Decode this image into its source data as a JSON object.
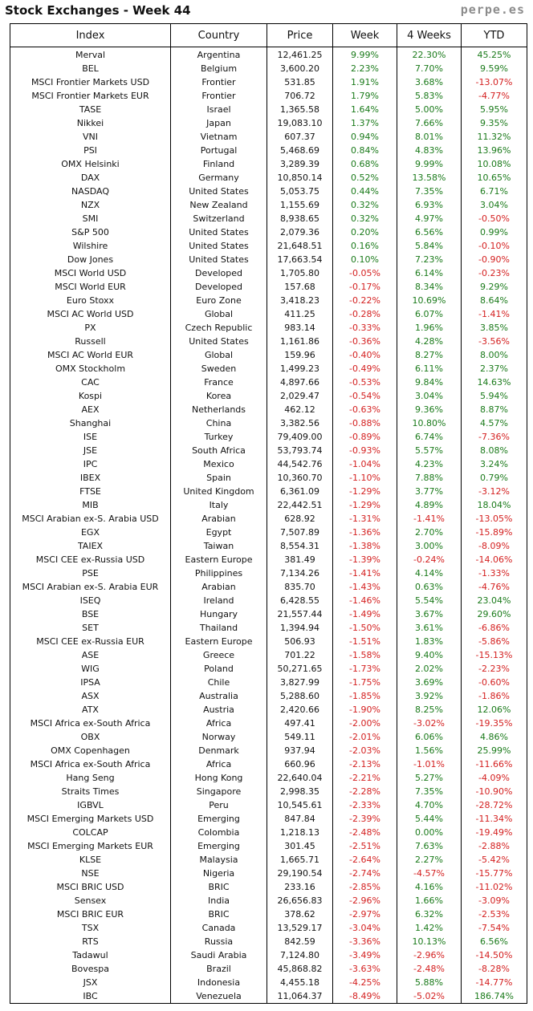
{
  "header": {
    "title": "Stock Exchanges - Week 44",
    "site": "perpe.es"
  },
  "colors": {
    "positive": "#1a7a1a",
    "negative": "#d42020"
  },
  "table": {
    "columns": [
      "Index",
      "Country",
      "Price",
      "Week",
      "4 Weeks",
      "YTD"
    ],
    "rows": [
      [
        "Merval",
        "Argentina",
        "12,461.25",
        "9.99%",
        "22.30%",
        "45.25%"
      ],
      [
        "BEL",
        "Belgium",
        "3,600.20",
        "2.23%",
        "7.70%",
        "9.59%"
      ],
      [
        "MSCI Frontier Markets USD",
        "Frontier",
        "531.85",
        "1.91%",
        "3.68%",
        "-13.07%"
      ],
      [
        "MSCI Frontier Markets EUR",
        "Frontier",
        "706.72",
        "1.79%",
        "5.83%",
        "-4.77%"
      ],
      [
        "TASE",
        "Israel",
        "1,365.58",
        "1.64%",
        "5.00%",
        "5.95%"
      ],
      [
        "Nikkei",
        "Japan",
        "19,083.10",
        "1.37%",
        "7.66%",
        "9.35%"
      ],
      [
        "VNI",
        "Vietnam",
        "607.37",
        "0.94%",
        "8.01%",
        "11.32%"
      ],
      [
        "PSI",
        "Portugal",
        "5,468.69",
        "0.84%",
        "4.83%",
        "13.96%"
      ],
      [
        "OMX Helsinki",
        "Finland",
        "3,289.39",
        "0.68%",
        "9.99%",
        "10.08%"
      ],
      [
        "DAX",
        "Germany",
        "10,850.14",
        "0.52%",
        "13.58%",
        "10.65%"
      ],
      [
        "NASDAQ",
        "United States",
        "5,053.75",
        "0.44%",
        "7.35%",
        "6.71%"
      ],
      [
        "NZX",
        "New Zealand",
        "1,155.69",
        "0.32%",
        "6.93%",
        "3.04%"
      ],
      [
        "SMI",
        "Switzerland",
        "8,938.65",
        "0.32%",
        "4.97%",
        "-0.50%"
      ],
      [
        "S&P 500",
        "United States",
        "2,079.36",
        "0.20%",
        "6.56%",
        "0.99%"
      ],
      [
        "Wilshire",
        "United States",
        "21,648.51",
        "0.16%",
        "5.84%",
        "-0.10%"
      ],
      [
        "Dow Jones",
        "United States",
        "17,663.54",
        "0.10%",
        "7.23%",
        "-0.90%"
      ],
      [
        "MSCI World USD",
        "Developed",
        "1,705.80",
        "-0.05%",
        "6.14%",
        "-0.23%"
      ],
      [
        "MSCI World EUR",
        "Developed",
        "157.68",
        "-0.17%",
        "8.34%",
        "9.29%"
      ],
      [
        "Euro Stoxx",
        "Euro Zone",
        "3,418.23",
        "-0.22%",
        "10.69%",
        "8.64%"
      ],
      [
        "MSCI AC World USD",
        "Global",
        "411.25",
        "-0.28%",
        "6.07%",
        "-1.41%"
      ],
      [
        "PX",
        "Czech Republic",
        "983.14",
        "-0.33%",
        "1.96%",
        "3.85%"
      ],
      [
        "Russell",
        "United States",
        "1,161.86",
        "-0.36%",
        "4.28%",
        "-3.56%"
      ],
      [
        "MSCI AC World EUR",
        "Global",
        "159.96",
        "-0.40%",
        "8.27%",
        "8.00%"
      ],
      [
        "OMX Stockholm",
        "Sweden",
        "1,499.23",
        "-0.49%",
        "6.11%",
        "2.37%"
      ],
      [
        "CAC",
        "France",
        "4,897.66",
        "-0.53%",
        "9.84%",
        "14.63%"
      ],
      [
        "Kospi",
        "Korea",
        "2,029.47",
        "-0.54%",
        "3.04%",
        "5.94%"
      ],
      [
        "AEX",
        "Netherlands",
        "462.12",
        "-0.63%",
        "9.36%",
        "8.87%"
      ],
      [
        "Shanghai",
        "China",
        "3,382.56",
        "-0.88%",
        "10.80%",
        "4.57%"
      ],
      [
        "ISE",
        "Turkey",
        "79,409.00",
        "-0.89%",
        "6.74%",
        "-7.36%"
      ],
      [
        "JSE",
        "South Africa",
        "53,793.74",
        "-0.93%",
        "5.57%",
        "8.08%"
      ],
      [
        "IPC",
        "Mexico",
        "44,542.76",
        "-1.04%",
        "4.23%",
        "3.24%"
      ],
      [
        "IBEX",
        "Spain",
        "10,360.70",
        "-1.10%",
        "7.88%",
        "0.79%"
      ],
      [
        "FTSE",
        "United Kingdom",
        "6,361.09",
        "-1.29%",
        "3.77%",
        "-3.12%"
      ],
      [
        "MIB",
        "Italy",
        "22,442.51",
        "-1.29%",
        "4.89%",
        "18.04%"
      ],
      [
        "MSCI Arabian ex-S. Arabia USD",
        "Arabian",
        "628.92",
        "-1.31%",
        "-1.41%",
        "-13.05%"
      ],
      [
        "EGX",
        "Egypt",
        "7,507.89",
        "-1.36%",
        "2.70%",
        "-15.89%"
      ],
      [
        "TAIEX",
        "Taiwan",
        "8,554.31",
        "-1.38%",
        "3.00%",
        "-8.09%"
      ],
      [
        "MSCI CEE ex-Russia USD",
        "Eastern Europe",
        "381.49",
        "-1.39%",
        "-0.24%",
        "-14.06%"
      ],
      [
        "PSE",
        "Philippines",
        "7,134.26",
        "-1.41%",
        "4.14%",
        "-1.33%"
      ],
      [
        "MSCI Arabian ex-S. Arabia EUR",
        "Arabian",
        "835.70",
        "-1.43%",
        "0.63%",
        "-4.76%"
      ],
      [
        "ISEQ",
        "Ireland",
        "6,428.55",
        "-1.46%",
        "5.54%",
        "23.04%"
      ],
      [
        "BSE",
        "Hungary",
        "21,557.44",
        "-1.49%",
        "3.67%",
        "29.60%"
      ],
      [
        "SET",
        "Thailand",
        "1,394.94",
        "-1.50%",
        "3.61%",
        "-6.86%"
      ],
      [
        "MSCI CEE ex-Russia EUR",
        "Eastern Europe",
        "506.93",
        "-1.51%",
        "1.83%",
        "-5.86%"
      ],
      [
        "ASE",
        "Greece",
        "701.22",
        "-1.58%",
        "9.40%",
        "-15.13%"
      ],
      [
        "WIG",
        "Poland",
        "50,271.65",
        "-1.73%",
        "2.02%",
        "-2.23%"
      ],
      [
        "IPSA",
        "Chile",
        "3,827.99",
        "-1.75%",
        "3.69%",
        "-0.60%"
      ],
      [
        "ASX",
        "Australia",
        "5,288.60",
        "-1.85%",
        "3.92%",
        "-1.86%"
      ],
      [
        "ATX",
        "Austria",
        "2,420.66",
        "-1.90%",
        "8.25%",
        "12.06%"
      ],
      [
        "MSCI Africa ex-South Africa",
        "Africa",
        "497.41",
        "-2.00%",
        "-3.02%",
        "-19.35%"
      ],
      [
        "OBX",
        "Norway",
        "549.11",
        "-2.01%",
        "6.06%",
        "4.86%"
      ],
      [
        "OMX Copenhagen",
        "Denmark",
        "937.94",
        "-2.03%",
        "1.56%",
        "25.99%"
      ],
      [
        "MSCI Africa ex-South Africa",
        "Africa",
        "660.96",
        "-2.13%",
        "-1.01%",
        "-11.66%"
      ],
      [
        "Hang Seng",
        "Hong Kong",
        "22,640.04",
        "-2.21%",
        "5.27%",
        "-4.09%"
      ],
      [
        "Straits Times",
        "Singapore",
        "2,998.35",
        "-2.28%",
        "7.35%",
        "-10.90%"
      ],
      [
        "IGBVL",
        "Peru",
        "10,545.61",
        "-2.33%",
        "4.70%",
        "-28.72%"
      ],
      [
        "MSCI Emerging Markets USD",
        "Emerging",
        "847.84",
        "-2.39%",
        "5.44%",
        "-11.34%"
      ],
      [
        "COLCAP",
        "Colombia",
        "1,218.13",
        "-2.48%",
        "0.00%",
        "-19.49%"
      ],
      [
        "MSCI Emerging Markets EUR",
        "Emerging",
        "301.45",
        "-2.51%",
        "7.63%",
        "-2.88%"
      ],
      [
        "KLSE",
        "Malaysia",
        "1,665.71",
        "-2.64%",
        "2.27%",
        "-5.42%"
      ],
      [
        "NSE",
        "Nigeria",
        "29,190.54",
        "-2.74%",
        "-4.57%",
        "-15.77%"
      ],
      [
        "MSCI BRIC USD",
        "BRIC",
        "233.16",
        "-2.85%",
        "4.16%",
        "-11.02%"
      ],
      [
        "Sensex",
        "India",
        "26,656.83",
        "-2.96%",
        "1.66%",
        "-3.09%"
      ],
      [
        "MSCI BRIC EUR",
        "BRIC",
        "378.62",
        "-2.97%",
        "6.32%",
        "-2.53%"
      ],
      [
        "TSX",
        "Canada",
        "13,529.17",
        "-3.04%",
        "1.42%",
        "-7.54%"
      ],
      [
        "RTS",
        "Russia",
        "842.59",
        "-3.36%",
        "10.13%",
        "6.56%"
      ],
      [
        "Tadawul",
        "Saudi Arabia",
        "7,124.80",
        "-3.49%",
        "-2.96%",
        "-14.50%"
      ],
      [
        "Bovespa",
        "Brazil",
        "45,868.82",
        "-3.63%",
        "-2.48%",
        "-8.28%"
      ],
      [
        "JSX",
        "Indonesia",
        "4,455.18",
        "-4.25%",
        "5.88%",
        "-14.77%"
      ],
      [
        "IBC",
        "Venezuela",
        "11,064.37",
        "-8.49%",
        "-5.02%",
        "186.74%"
      ]
    ]
  }
}
